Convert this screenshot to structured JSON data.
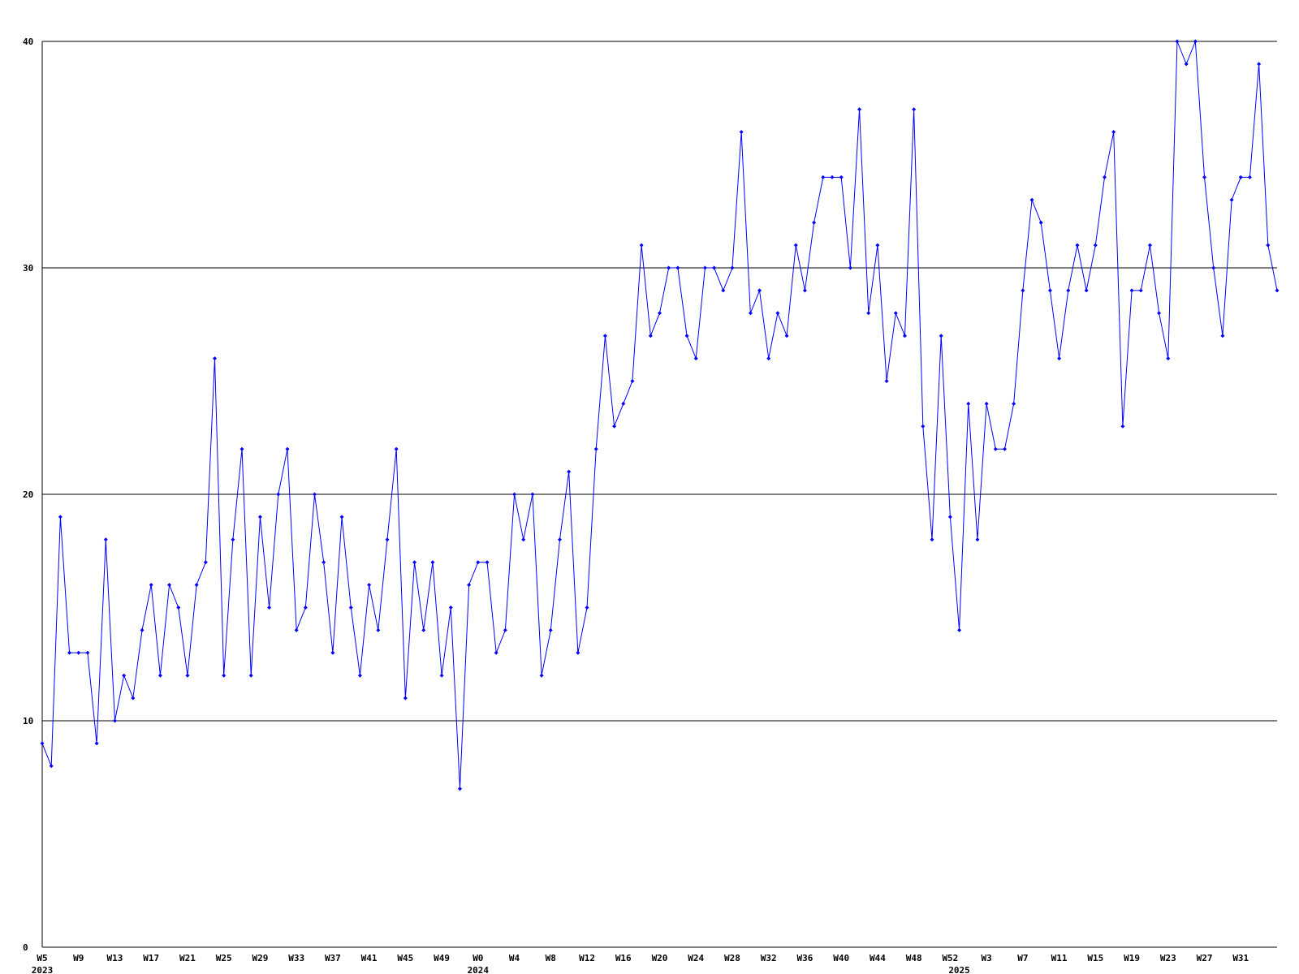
{
  "chart_data": {
    "type": "line",
    "color": "#0000ff",
    "grid": true,
    "ylim": [
      0,
      40
    ],
    "yticks": [
      0,
      10,
      20,
      30,
      40
    ],
    "categories": [
      "W5",
      null,
      null,
      null,
      "W9",
      null,
      null,
      null,
      "W13",
      null,
      null,
      null,
      "W17",
      null,
      null,
      null,
      "W21",
      null,
      null,
      null,
      "W25",
      null,
      null,
      null,
      "W29",
      null,
      null,
      null,
      "W33",
      null,
      null,
      null,
      "W37",
      null,
      null,
      null,
      "W41",
      null,
      null,
      null,
      "W45",
      null,
      null,
      null,
      "W49",
      null,
      null,
      null,
      "W0",
      null,
      null,
      null,
      "W4",
      null,
      null,
      null,
      "W8",
      null,
      null,
      null,
      "W12",
      null,
      null,
      null,
      "W16",
      null,
      null,
      null,
      "W20",
      null,
      null,
      null,
      "W24",
      null,
      null,
      null,
      "W28",
      null,
      null,
      null,
      "W32",
      null,
      null,
      null,
      "W36",
      null,
      null,
      null,
      "W40",
      null,
      null,
      null,
      "W44",
      null,
      null,
      null,
      "W48",
      null,
      null,
      null,
      "W52",
      null,
      null,
      null,
      "W3",
      null,
      null,
      null,
      "W7",
      null,
      null,
      null,
      "W11",
      null,
      null,
      null,
      "W15",
      null,
      null,
      null,
      "W19",
      null,
      null,
      null,
      "W23",
      null,
      null,
      null,
      "W27",
      null,
      null,
      null,
      "W31",
      null,
      null,
      null,
      null
    ],
    "years": [
      "2023",
      null,
      null,
      null,
      null,
      null,
      null,
      null,
      null,
      null,
      null,
      null,
      null,
      null,
      null,
      null,
      null,
      null,
      null,
      null,
      null,
      null,
      null,
      null,
      null,
      null,
      null,
      null,
      null,
      null,
      null,
      null,
      null,
      null,
      null,
      null,
      null,
      null,
      null,
      null,
      null,
      null,
      null,
      null,
      null,
      null,
      null,
      null,
      "2024",
      null,
      null,
      null,
      null,
      null,
      null,
      null,
      null,
      null,
      null,
      null,
      null,
      null,
      null,
      null,
      null,
      null,
      null,
      null,
      null,
      null,
      null,
      null,
      null,
      null,
      null,
      null,
      null,
      null,
      null,
      null,
      null,
      null,
      null,
      null,
      null,
      null,
      null,
      null,
      null,
      null,
      null,
      null,
      null,
      null,
      null,
      null,
      null,
      null,
      null,
      null,
      null,
      "2025",
      null,
      null,
      null,
      null,
      null,
      null,
      null,
      null,
      null,
      null,
      null,
      null,
      null,
      null,
      null,
      null,
      null,
      null,
      null,
      null,
      null,
      null,
      null,
      null,
      null,
      null,
      null,
      null,
      null,
      null,
      null,
      null,
      null,
      null,
      null
    ],
    "values": [
      9,
      8,
      19,
      13,
      13,
      13,
      9,
      18,
      10,
      12,
      11,
      14,
      16,
      12,
      16,
      15,
      12,
      16,
      17,
      26,
      12,
      18,
      22,
      12,
      19,
      15,
      20,
      22,
      14,
      15,
      20,
      17,
      13,
      19,
      15,
      12,
      16,
      14,
      18,
      22,
      11,
      17,
      14,
      17,
      12,
      15,
      7,
      16,
      17,
      17,
      13,
      14,
      20,
      18,
      20,
      12,
      14,
      18,
      21,
      13,
      15,
      22,
      27,
      23,
      24,
      25,
      31,
      27,
      28,
      30,
      30,
      27,
      26,
      30,
      30,
      29,
      30,
      36,
      28,
      29,
      26,
      28,
      27,
      31,
      29,
      32,
      34,
      34,
      34,
      30,
      37,
      28,
      31,
      25,
      28,
      27,
      37,
      23,
      18,
      27,
      19,
      14,
      24,
      18,
      24,
      22,
      22,
      24,
      29,
      33,
      32,
      29,
      26,
      29,
      31,
      29,
      31,
      34,
      36,
      23,
      29,
      29,
      31,
      28,
      26,
      40,
      39,
      40,
      34,
      30,
      27,
      33,
      34,
      34,
      39,
      31,
      29
    ]
  }
}
